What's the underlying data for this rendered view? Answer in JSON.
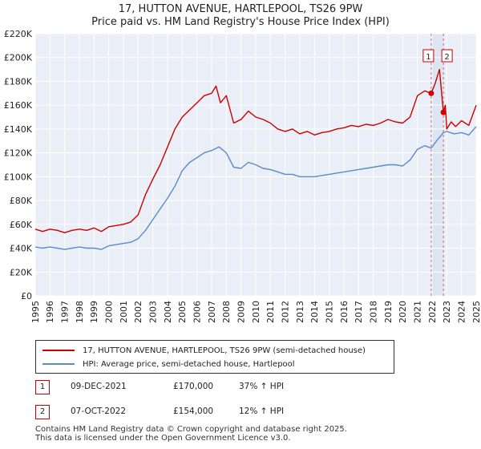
{
  "chart_data": {
    "type": "line",
    "title": "17, HUTTON AVENUE, HARTLEPOOL, TS26 9PW",
    "subtitle": "Price paid vs. HM Land Registry's House Price Index (HPI)",
    "xlabel": "",
    "ylabel": "",
    "xlim": [
      1995,
      2025
    ],
    "ylim": [
      0,
      220000
    ],
    "grid": true,
    "y_ticks": [
      0,
      20000,
      40000,
      60000,
      80000,
      100000,
      120000,
      140000,
      160000,
      180000,
      200000,
      220000
    ],
    "y_tick_labels": [
      "£0",
      "£20K",
      "£40K",
      "£60K",
      "£80K",
      "£100K",
      "£120K",
      "£140K",
      "£160K",
      "£180K",
      "£200K",
      "£220K"
    ],
    "x_ticks": [
      1995,
      1996,
      1997,
      1998,
      1999,
      2000,
      2001,
      2002,
      2003,
      2004,
      2005,
      2006,
      2007,
      2008,
      2009,
      2010,
      2011,
      2012,
      2013,
      2014,
      2015,
      2016,
      2017,
      2018,
      2019,
      2020,
      2021,
      2022,
      2023,
      2024,
      2025
    ],
    "x_tick_labels": [
      "1995",
      "1996",
      "1997",
      "1998",
      "1999",
      "2000",
      "2001",
      "2002",
      "2003",
      "2004",
      "2005",
      "2006",
      "2007",
      "2008",
      "2009",
      "2010",
      "2011",
      "2012",
      "2013",
      "2014",
      "2015",
      "2016",
      "2017",
      "2018",
      "2019",
      "2020",
      "2021",
      "2022",
      "2023",
      "2024",
      "2025"
    ],
    "series": [
      {
        "name": "17, HUTTON AVENUE, HARTLEPOOL, TS26 9PW (semi-detached house)",
        "color": "#cc0000",
        "x": [
          1995.0,
          1995.5,
          1996.0,
          1996.5,
          1997.0,
          1997.5,
          1998.0,
          1998.5,
          1999.0,
          1999.5,
          2000.0,
          2000.5,
          2001.0,
          2001.5,
          2002.0,
          2002.5,
          2003.0,
          2003.5,
          2004.0,
          2004.5,
          2005.0,
          2005.5,
          2006.0,
          2006.5,
          2007.0,
          2007.3,
          2007.6,
          2008.0,
          2008.5,
          2009.0,
          2009.5,
          2010.0,
          2010.5,
          2011.0,
          2011.5,
          2012.0,
          2012.5,
          2013.0,
          2013.5,
          2014.0,
          2014.5,
          2015.0,
          2015.5,
          2016.0,
          2016.5,
          2017.0,
          2017.5,
          2018.0,
          2018.5,
          2019.0,
          2019.5,
          2020.0,
          2020.5,
          2021.0,
          2021.5,
          2021.94,
          2022.2,
          2022.5,
          2022.77,
          2022.9,
          2023.0,
          2023.3,
          2023.6,
          2024.0,
          2024.5,
          2025.0
        ],
        "y": [
          56000,
          54000,
          56000,
          55000,
          53000,
          55000,
          56000,
          55000,
          57000,
          54000,
          58000,
          59000,
          60000,
          62000,
          68000,
          85000,
          98000,
          110000,
          125000,
          140000,
          150000,
          156000,
          162000,
          168000,
          170000,
          176000,
          162000,
          168000,
          145000,
          148000,
          155000,
          150000,
          148000,
          145000,
          140000,
          138000,
          140000,
          136000,
          138000,
          135000,
          137000,
          138000,
          140000,
          141000,
          143000,
          142000,
          144000,
          143000,
          145000,
          148000,
          146000,
          145000,
          150000,
          168000,
          172000,
          170000,
          178000,
          190000,
          154000,
          160000,
          140000,
          146000,
          142000,
          147000,
          143000,
          160000
        ]
      },
      {
        "name": "HPI: Average price, semi-detached house, Hartlepool",
        "color": "#5b8cc8",
        "x": [
          1995.0,
          1995.5,
          1996.0,
          1996.5,
          1997.0,
          1997.5,
          1998.0,
          1998.5,
          1999.0,
          1999.5,
          2000.0,
          2000.5,
          2001.0,
          2001.5,
          2002.0,
          2002.5,
          2003.0,
          2003.5,
          2004.0,
          2004.5,
          2005.0,
          2005.5,
          2006.0,
          2006.5,
          2007.0,
          2007.5,
          2008.0,
          2008.5,
          2009.0,
          2009.5,
          2010.0,
          2010.5,
          2011.0,
          2011.5,
          2012.0,
          2012.5,
          2013.0,
          2013.5,
          2014.0,
          2014.5,
          2015.0,
          2015.5,
          2016.0,
          2016.5,
          2017.0,
          2017.5,
          2018.0,
          2018.5,
          2019.0,
          2019.5,
          2020.0,
          2020.5,
          2021.0,
          2021.5,
          2021.94,
          2022.3,
          2022.77,
          2023.0,
          2023.5,
          2024.0,
          2024.5,
          2025.0
        ],
        "y": [
          41000,
          40000,
          41000,
          40000,
          39000,
          40000,
          41000,
          40000,
          40000,
          39000,
          42000,
          43000,
          44000,
          45000,
          48000,
          55000,
          64000,
          73000,
          82000,
          92000,
          105000,
          112000,
          116000,
          120000,
          122000,
          125000,
          120000,
          108000,
          107000,
          112000,
          110000,
          107000,
          106000,
          104000,
          102000,
          102000,
          100000,
          100000,
          100000,
          101000,
          102000,
          103000,
          104000,
          105000,
          106000,
          107000,
          108000,
          109000,
          110000,
          110000,
          109000,
          114000,
          123000,
          126000,
          124000,
          130000,
          137000,
          138000,
          136000,
          137000,
          135000,
          142000
        ]
      }
    ],
    "annotations": [
      {
        "label": "1",
        "x": 2021.94,
        "y": 170000
      },
      {
        "label": "2",
        "x": 2022.77,
        "y": 154000
      }
    ],
    "shaded_span": [
      2021.94,
      2022.77
    ]
  },
  "legend": {
    "entries": [
      {
        "label": "17, HUTTON AVENUE, HARTLEPOOL, TS26 9PW (semi-detached house)",
        "color": "#cc0000"
      },
      {
        "label": "HPI: Average price, semi-detached house, Hartlepool",
        "color": "#5b8cc8"
      }
    ]
  },
  "transactions": [
    {
      "num": "1",
      "date": "09-DEC-2021",
      "price": "£170,000",
      "hpi": "37% ↑ HPI"
    },
    {
      "num": "2",
      "date": "07-OCT-2022",
      "price": "£154,000",
      "hpi": "12% ↑ HPI"
    }
  ],
  "footer": {
    "line1": "Contains HM Land Registry data © Crown copyright and database right 2025.",
    "line2": "This data is licensed under the Open Government Licence v3.0."
  }
}
